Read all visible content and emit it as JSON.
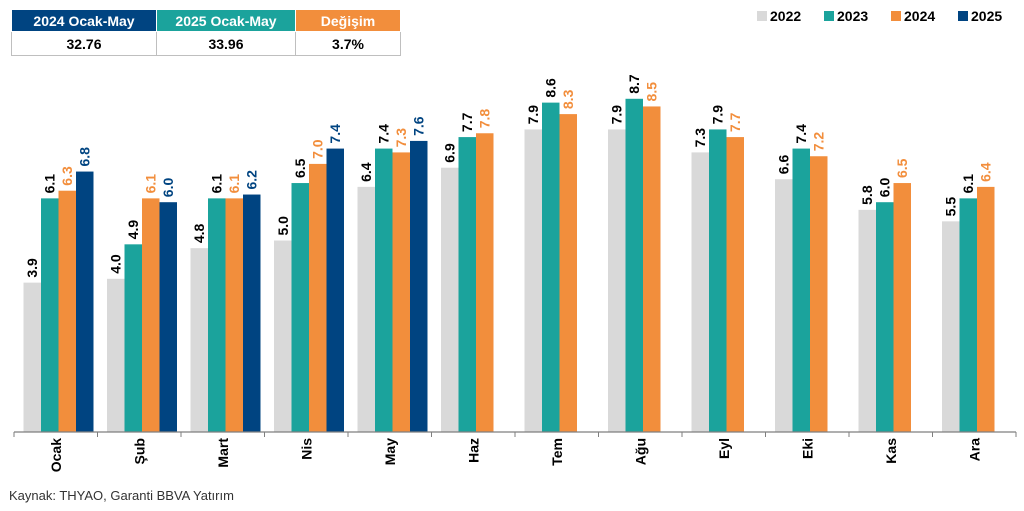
{
  "summary": {
    "headers": [
      "2024 Ocak-May",
      "2025 Ocak-May",
      "Değişim"
    ],
    "values": [
      "32.76",
      "33.96",
      "3.7%"
    ],
    "header_colors": [
      "#004481",
      "#1BA39C",
      "#F28E3C"
    ]
  },
  "chart_data": {
    "type": "bar",
    "categories": [
      "Ocak",
      "Şub",
      "Mart",
      "Nis",
      "May",
      "Haz",
      "Tem",
      "Ağu",
      "Eyl",
      "Eki",
      "Kas",
      "Ara"
    ],
    "series": [
      {
        "name": "2022",
        "color": "#D9D9D9",
        "label_color": "#000000",
        "values": [
          3.9,
          4.0,
          4.8,
          5.0,
          6.4,
          6.9,
          7.9,
          7.9,
          7.3,
          6.6,
          5.8,
          5.5
        ]
      },
      {
        "name": "2023",
        "color": "#1BA39C",
        "label_color": "#000000",
        "values": [
          6.1,
          4.9,
          6.1,
          6.5,
          7.4,
          7.7,
          8.6,
          8.7,
          7.9,
          7.4,
          6.0,
          6.1
        ]
      },
      {
        "name": "2024",
        "color": "#F28E3C",
        "label_color": "#F28E3C",
        "values": [
          6.3,
          6.1,
          6.1,
          7.0,
          7.3,
          7.8,
          8.3,
          8.5,
          7.7,
          7.2,
          6.5,
          6.4
        ]
      },
      {
        "name": "2025",
        "color": "#004481",
        "label_color": "#004481",
        "values": [
          6.8,
          6.0,
          6.2,
          7.4,
          7.6,
          null,
          null,
          null,
          null,
          null,
          null,
          null
        ]
      }
    ],
    "title": "",
    "xlabel": "",
    "ylabel": "",
    "ylim": [
      0,
      9
    ],
    "grid": false,
    "legend_position": "top-right"
  },
  "source": "Kaynak: THYAO, Garanti BBVA Yatırım"
}
